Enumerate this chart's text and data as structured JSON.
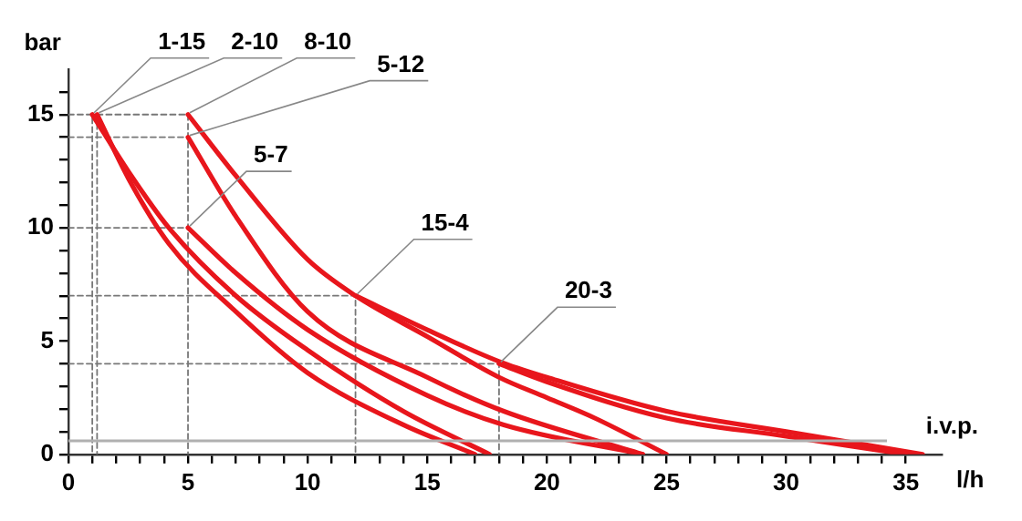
{
  "chart_data": {
    "type": "line",
    "xlabel": "l/h",
    "ylabel": "bar",
    "xlim": [
      0,
      36.5
    ],
    "ylim": [
      0,
      17
    ],
    "xticks": [
      0,
      {
        "value": 1,
        "label": null
      },
      {
        "value": 2,
        "label": null
      },
      {
        "value": 3,
        "label": null
      },
      {
        "value": 4,
        "label": null
      },
      5,
      {
        "value": 6,
        "label": null
      },
      {
        "value": 7,
        "label": null
      },
      {
        "value": 8,
        "label": null
      },
      {
        "value": 9,
        "label": null
      },
      10,
      {
        "value": 11,
        "label": null
      },
      {
        "value": 12,
        "label": null
      },
      {
        "value": 13,
        "label": null
      },
      {
        "value": 14,
        "label": null
      },
      15,
      {
        "value": 16,
        "label": null
      },
      {
        "value": 17,
        "label": null
      },
      {
        "value": 18,
        "label": null
      },
      {
        "value": 19,
        "label": null
      },
      20,
      {
        "value": 21,
        "label": null
      },
      {
        "value": 22,
        "label": null
      },
      {
        "value": 23,
        "label": null
      },
      {
        "value": 24,
        "label": null
      },
      25,
      {
        "value": 26,
        "label": null
      },
      {
        "value": 27,
        "label": null
      },
      {
        "value": 28,
        "label": null
      },
      {
        "value": 29,
        "label": null
      },
      30,
      {
        "value": 31,
        "label": null
      },
      {
        "value": 32,
        "label": null
      },
      {
        "value": 33,
        "label": null
      },
      {
        "value": 34,
        "label": null
      },
      35
    ],
    "yticks": [
      0,
      {
        "value": 1,
        "label": null
      },
      {
        "value": 2,
        "label": null
      },
      {
        "value": 3,
        "label": null
      },
      {
        "value": 4,
        "label": null
      },
      5,
      {
        "value": 6,
        "label": null
      },
      {
        "value": 7,
        "label": null
      },
      {
        "value": 8,
        "label": null
      },
      {
        "value": 9,
        "label": null
      },
      10,
      {
        "value": 11,
        "label": null
      },
      {
        "value": 12,
        "label": null
      },
      {
        "value": 13,
        "label": null
      },
      {
        "value": 14,
        "label": null
      },
      15,
      {
        "value": 16,
        "label": null
      }
    ],
    "grid": false,
    "legend": false,
    "marker": "none",
    "line_style": "solid",
    "series": [
      {
        "color": "#e8161c",
        "x": [
          1,
          2.5,
          4.2,
          7,
          10,
          14,
          17.6
        ],
        "values": [
          15,
          12.5,
          10,
          7,
          4.6,
          1.9,
          0
        ]
      },
      {
        "color": "#e8161c",
        "x": [
          1.2,
          2.5,
          4.2,
          7,
          10,
          14,
          17
        ],
        "values": [
          15,
          12.2,
          9.3,
          6.3,
          3.6,
          1.3,
          0
        ]
      },
      {
        "color": "#e8161c",
        "x": [
          5,
          7,
          10,
          15,
          18.2,
          24
        ],
        "values": [
          10,
          8,
          5.5,
          2.6,
          1.3,
          0
        ]
      },
      {
        "color": "#e8161c",
        "x": [
          5,
          7,
          10,
          15,
          18.2,
          24
        ],
        "values": [
          14,
          10.5,
          6.3,
          3.4,
          1.9,
          0
        ]
      },
      {
        "color": "#e8161c",
        "x": [
          5,
          7,
          10,
          12,
          15,
          18,
          20,
          22,
          25
        ],
        "values": [
          15,
          12.3,
          8.6,
          7,
          5.2,
          3.4,
          2.5,
          1.6,
          0
        ]
      },
      {
        "color": "#e8161c",
        "x": [
          12,
          15,
          18,
          20,
          25,
          30,
          35.7
        ],
        "values": [
          7,
          5.5,
          4.1,
          3.4,
          1.9,
          1.0,
          0
        ]
      },
      {
        "color": "#e8161c",
        "x": [
          18,
          20,
          25,
          30,
          35
        ],
        "values": [
          4,
          3.2,
          1.6,
          0.8,
          0
        ]
      },
      {
        "color": "#777777",
        "line_style": "dashed",
        "x": [
          0,
          1,
          1
        ],
        "values": [
          15,
          15,
          0
        ]
      },
      {
        "color": "#777777",
        "line_style": "dashed",
        "x": [
          1.2,
          1.2
        ],
        "values": [
          15,
          0
        ]
      },
      {
        "color": "#777777",
        "line_style": "dashed",
        "x": [
          1.2,
          5,
          5
        ],
        "values": [
          15,
          15,
          0
        ]
      },
      {
        "color": "#777777",
        "line_style": "dashed",
        "x": [
          0,
          5
        ],
        "values": [
          14,
          14
        ]
      },
      {
        "color": "#777777",
        "line_style": "dashed",
        "x": [
          0,
          5
        ],
        "values": [
          10,
          10
        ]
      },
      {
        "color": "#777777",
        "line_style": "dashed",
        "x": [
          0,
          12,
          12
        ],
        "values": [
          7,
          7,
          0
        ]
      },
      {
        "color": "#777777",
        "line_style": "dashed",
        "x": [
          0,
          18,
          18
        ],
        "values": [
          4,
          4,
          0
        ]
      }
    ],
    "ref_lines": [
      {
        "axis": "y",
        "value": 0.6,
        "label": "i.v.p.",
        "color": "#b0b0b0"
      }
    ],
    "annotations": [
      {
        "text": "1-15",
        "x": 1,
        "y": 15
      },
      {
        "text": "2-10",
        "x": 1.2,
        "y": 15
      },
      {
        "text": "8-10",
        "x": 5,
        "y": 15
      },
      {
        "text": "5-12",
        "x": 5,
        "y": 14
      },
      {
        "text": "5-7",
        "x": 5,
        "y": 10
      },
      {
        "text": "15-4",
        "x": 12,
        "y": 7
      },
      {
        "text": "20-3",
        "x": 18,
        "y": 4
      }
    ]
  }
}
